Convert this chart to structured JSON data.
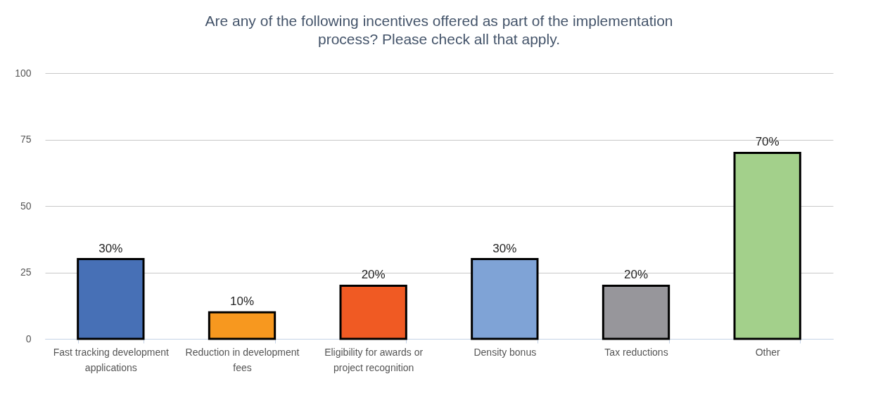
{
  "chart_data": {
    "type": "bar",
    "title": "Are any of the following incentives offered as part of the implementation process? Please check all that apply.",
    "categories": [
      "Fast tracking development applications",
      "Reduction in development fees",
      "Eligibility for awards or project recognition",
      "Density bonus",
      "Tax reductions",
      "Other"
    ],
    "values": [
      30,
      10,
      20,
      30,
      20,
      70
    ],
    "colors": [
      "#4770b6",
      "#f7981f",
      "#f05a23",
      "#7fa3d6",
      "#97969b",
      "#a3d08b"
    ],
    "value_labels": [
      "30%",
      "10%",
      "20%",
      "30%",
      "20%",
      "70%"
    ],
    "ylim": [
      0,
      100
    ],
    "yticks": [
      0,
      25,
      50,
      75,
      100
    ],
    "grid": "y"
  }
}
